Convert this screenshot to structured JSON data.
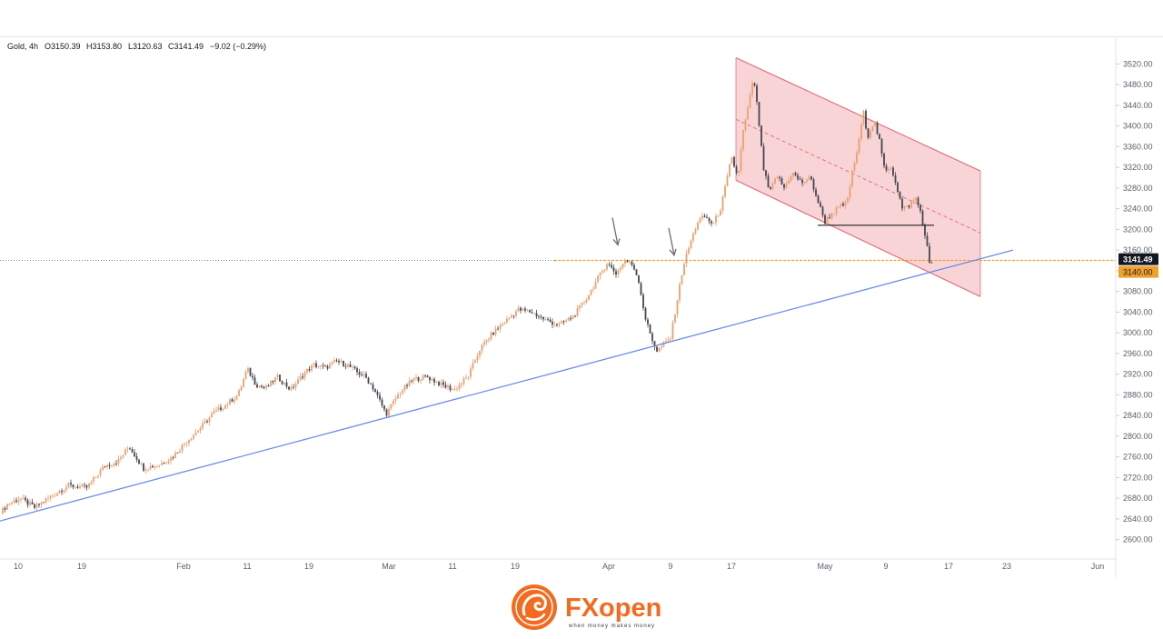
{
  "chart_data": {
    "type": "candlestick",
    "header": {
      "symbol": "Gold, 4h",
      "open": "O3150.39",
      "high": "H3153.80",
      "low": "L3120.63",
      "close": "C3141.49",
      "change": "−9.02 (−0.29%)"
    },
    "ylim": [
      2580,
      3540
    ],
    "y_ticks": [
      "2600.00",
      "2640.00",
      "2680.00",
      "2720.00",
      "2760.00",
      "2800.00",
      "2840.00",
      "2880.00",
      "2920.00",
      "2960.00",
      "3000.00",
      "3040.00",
      "3080.00",
      "3120.00",
      "3160.00",
      "3200.00",
      "3240.00",
      "3280.00",
      "3320.00",
      "3360.00",
      "3400.00",
      "3440.00",
      "3480.00",
      "3520.00"
    ],
    "x_ticks": [
      "10",
      "19",
      "Feb",
      "11",
      "19",
      "Mar",
      "11",
      "19",
      "Apr",
      "9",
      "17",
      "May",
      "9",
      "17",
      "23",
      "Jun"
    ],
    "price_labels": {
      "last": "3141.49",
      "level": "3140.00"
    },
    "path_points": [
      [
        0,
        2650
      ],
      [
        8,
        2668
      ],
      [
        22,
        2680
      ],
      [
        38,
        2662
      ],
      [
        55,
        2682
      ],
      [
        75,
        2705
      ],
      [
        95,
        2700
      ],
      [
        115,
        2742
      ],
      [
        130,
        2752
      ],
      [
        142,
        2780
      ],
      [
        158,
        2738
      ],
      [
        175,
        2745
      ],
      [
        190,
        2760
      ],
      [
        205,
        2790
      ],
      [
        220,
        2815
      ],
      [
        235,
        2845
      ],
      [
        248,
        2860
      ],
      [
        262,
        2880
      ],
      [
        272,
        2930
      ],
      [
        282,
        2900
      ],
      [
        292,
        2892
      ],
      [
        305,
        2915
      ],
      [
        320,
        2890
      ],
      [
        335,
        2922
      ],
      [
        345,
        2938
      ],
      [
        358,
        2932
      ],
      [
        370,
        2945
      ],
      [
        382,
        2938
      ],
      [
        392,
        2925
      ],
      [
        402,
        2915
      ],
      [
        412,
        2890
      ],
      [
        425,
        2843
      ],
      [
        440,
        2885
      ],
      [
        455,
        2910
      ],
      [
        470,
        2915
      ],
      [
        485,
        2900
      ],
      [
        500,
        2890
      ],
      [
        515,
        2915
      ],
      [
        528,
        2968
      ],
      [
        540,
        2995
      ],
      [
        555,
        3020
      ],
      [
        570,
        3045
      ],
      [
        585,
        3040
      ],
      [
        600,
        3025
      ],
      [
        615,
        3015
      ],
      [
        630,
        3030
      ],
      [
        645,
        3065
      ],
      [
        658,
        3105
      ],
      [
        668,
        3135
      ],
      [
        678,
        3115
      ],
      [
        688,
        3140
      ],
      [
        697,
        3130
      ],
      [
        703,
        3100
      ],
      [
        710,
        3030
      ],
      [
        717,
        2990
      ],
      [
        723,
        2965
      ],
      [
        732,
        2980
      ],
      [
        738,
        2990
      ],
      [
        745,
        3060
      ],
      [
        752,
        3130
      ],
      [
        760,
        3175
      ],
      [
        768,
        3215
      ],
      [
        775,
        3225
      ],
      [
        785,
        3210
      ],
      [
        793,
        3240
      ],
      [
        800,
        3295
      ],
      [
        805,
        3340
      ],
      [
        812,
        3300
      ],
      [
        818,
        3390
      ],
      [
        824,
        3440
      ],
      [
        829,
        3495
      ],
      [
        834,
        3430
      ],
      [
        840,
        3320
      ],
      [
        847,
        3270
      ],
      [
        855,
        3305
      ],
      [
        863,
        3280
      ],
      [
        872,
        3310
      ],
      [
        882,
        3290
      ],
      [
        892,
        3300
      ],
      [
        900,
        3255
      ],
      [
        908,
        3215
      ],
      [
        915,
        3230
      ],
      [
        925,
        3245
      ],
      [
        932,
        3250
      ],
      [
        938,
        3310
      ],
      [
        945,
        3365
      ],
      [
        950,
        3430
      ],
      [
        955,
        3380
      ],
      [
        962,
        3410
      ],
      [
        968,
        3370
      ],
      [
        974,
        3310
      ],
      [
        980,
        3325
      ],
      [
        986,
        3290
      ],
      [
        993,
        3240
      ],
      [
        1000,
        3245
      ],
      [
        1008,
        3260
      ],
      [
        1014,
        3230
      ],
      [
        1018,
        3185
      ],
      [
        1021,
        3160
      ],
      [
        1024,
        3125
      ],
      [
        1026,
        3141
      ]
    ],
    "annotations": {
      "uptrend_line": [
        [
          0,
          2636
        ],
        [
          1115,
          3160
        ]
      ],
      "channel_upper": [
        [
          810,
          3532
        ],
        [
          1079,
          3313
        ]
      ],
      "channel_lower": [
        [
          810,
          3295
        ],
        [
          1079,
          3070
        ]
      ],
      "channel_mid": [
        [
          810,
          3413
        ],
        [
          1079,
          3193
        ]
      ],
      "support_level": [
        [
          900,
          3208
        ],
        [
          1028,
          3208
        ]
      ],
      "horizontal_level": 3140,
      "arrows": [
        {
          "x": 680,
          "y_tip": 3170
        },
        {
          "x": 742,
          "y_tip": 3150
        }
      ]
    },
    "colors": {
      "up": "#e8a16e",
      "down": "#434651",
      "trendline": "#6b8ee8",
      "channel_fill": "#f6c5c8",
      "channel_line": "#e2737f",
      "level_line": "#f0a02e",
      "label_last_bg": "#131722",
      "label_level_bg": "#f0a02e"
    }
  },
  "footer": {
    "brand": "FXopen",
    "tagline": "when money makes money",
    "colors": {
      "accent": "#f26b21",
      "text": "#3a3a3a"
    }
  }
}
